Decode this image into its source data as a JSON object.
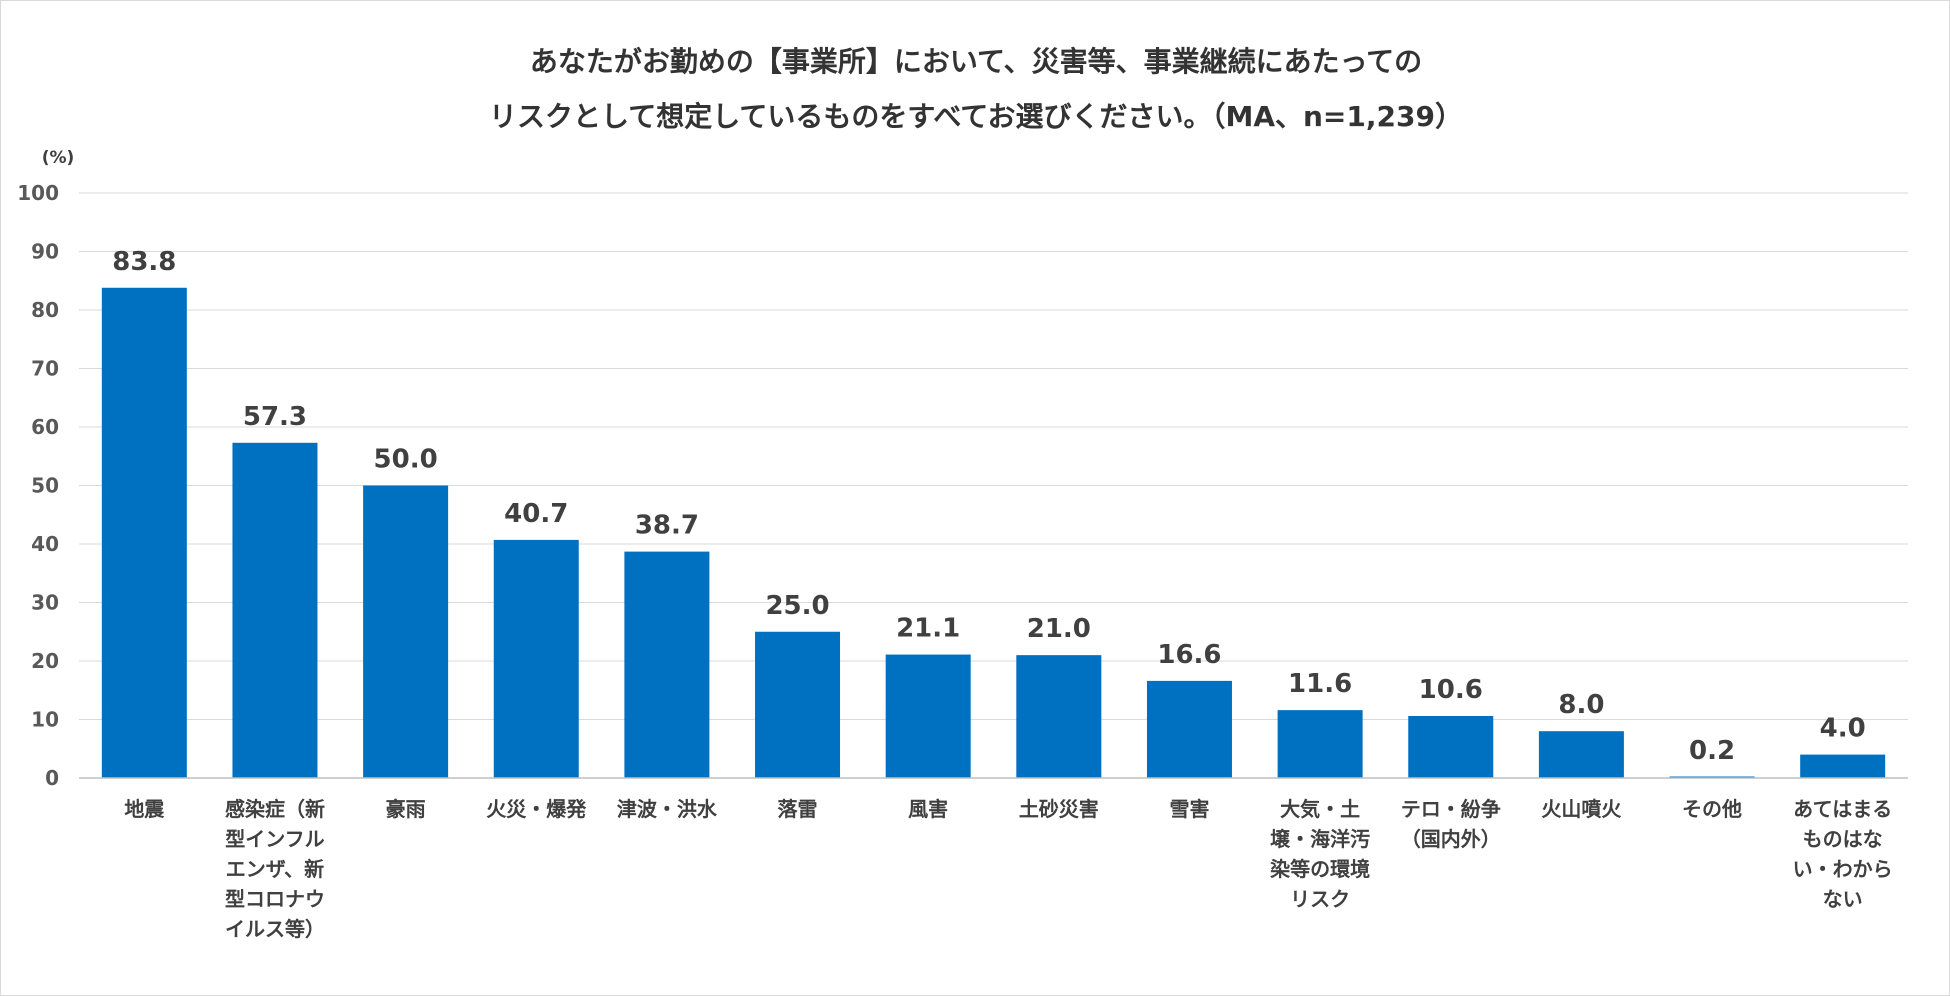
{
  "chart_data": {
    "type": "bar",
    "title_lines": [
      "あなたがお勤めの【事業所】において、災害等、事業継続にあたっての",
      "リスクとして想定しているものをすべてお選びください。（MA、n=1,239）"
    ],
    "y_unit": "(%)",
    "ylim": [
      0,
      100
    ],
    "y_ticks": [
      0,
      10,
      20,
      30,
      40,
      50,
      60,
      70,
      80,
      90,
      100
    ],
    "grid": true,
    "bar_color": "#0070c0",
    "categories": [
      "地震",
      "感染症（新型インフルエンザ、新型コロナウイルス等）",
      "豪雨",
      "火災・爆発",
      "津波・洪水",
      "落雷",
      "風害",
      "土砂災害",
      "雪害",
      "大気・土壌・海洋汚染等の環境リスク",
      "テロ・紛争（国内外）",
      "火山噴火",
      "その他",
      "あてはまるものはない・わからない"
    ],
    "category_label_lines": [
      [
        "地震"
      ],
      [
        "感染症（新",
        "型インフル",
        "エンザ、新",
        "型コロナウ",
        "イルス等）"
      ],
      [
        "豪雨"
      ],
      [
        "火災・爆発"
      ],
      [
        "津波・洪水"
      ],
      [
        "落雷"
      ],
      [
        "風害"
      ],
      [
        "土砂災害"
      ],
      [
        "雪害"
      ],
      [
        "大気・土",
        "壌・海洋汚",
        "染等の環境",
        "リスク"
      ],
      [
        "テロ・紛争",
        "（国内外）"
      ],
      [
        "火山噴火"
      ],
      [
        "その他"
      ],
      [
        "あてはまる",
        "ものはな",
        "い・わから",
        "ない"
      ]
    ],
    "values": [
      83.8,
      57.3,
      50.0,
      40.7,
      38.7,
      25.0,
      21.1,
      21.0,
      16.6,
      11.6,
      10.6,
      8.0,
      0.2,
      4.0
    ],
    "value_labels": [
      "83.8",
      "57.3",
      "50.0",
      "40.7",
      "38.7",
      "25.0",
      "21.1",
      "21.0",
      "16.6",
      "11.6",
      "10.6",
      "8.0",
      "0.2",
      "4.0"
    ]
  }
}
